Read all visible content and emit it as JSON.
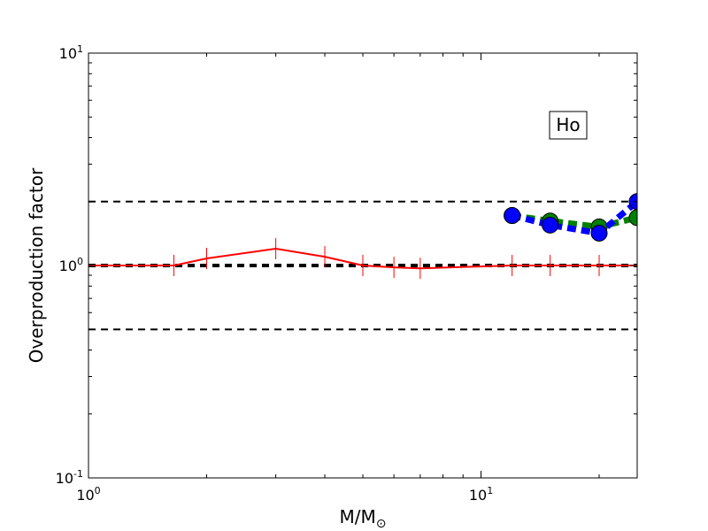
{
  "chart_data": {
    "type": "line",
    "title": "",
    "xlabel": "M/M",
    "xlabel_subscript": "⊙",
    "ylabel": "Overproduction factor",
    "xscale": "log",
    "yscale": "log",
    "xlim": [
      1,
      25
    ],
    "ylim": [
      0.1,
      10
    ],
    "grid": false,
    "x_ticks": [
      {
        "value": 1,
        "base": "10",
        "exp": "0"
      },
      {
        "value": 10,
        "base": "10",
        "exp": "1"
      }
    ],
    "y_ticks": [
      {
        "value": 0.1,
        "base": "10",
        "exp": "-1"
      },
      {
        "value": 1,
        "base": "10",
        "exp": "0"
      },
      {
        "value": 10,
        "base": "10",
        "exp": "1"
      }
    ],
    "annotation": "Ho",
    "reference_lines": [
      {
        "y": 2.0,
        "style": "dashed",
        "color": "#000000",
        "width": 2
      },
      {
        "y": 1.0,
        "style": "dashed",
        "color": "#000000",
        "width": 4
      },
      {
        "y": 0.5,
        "style": "dashed",
        "color": "#000000",
        "width": 2
      }
    ],
    "series": [
      {
        "color": "#ff0000",
        "style": "solid",
        "marker": "vline",
        "x": [
          1.0,
          1.65,
          2.0,
          3.0,
          4.0,
          5.0,
          6.0,
          7.0,
          12.0,
          15.0,
          20.0,
          25.0
        ],
        "y": [
          1.0,
          1.0,
          1.08,
          1.2,
          1.1,
          1.0,
          0.98,
          0.97,
          1.0,
          1.0,
          1.0,
          1.0
        ]
      },
      {
        "color": "#008000",
        "style": "dashed",
        "marker": "circle",
        "x": [
          12.0,
          15.0,
          20.0,
          25.0
        ],
        "y": [
          1.72,
          1.62,
          1.52,
          1.68
        ]
      },
      {
        "color": "#0000ff",
        "style": "dashed",
        "marker": "circle",
        "x": [
          12.0,
          15.0,
          20.0,
          25.0
        ],
        "y": [
          1.72,
          1.55,
          1.42,
          2.0
        ]
      }
    ]
  }
}
